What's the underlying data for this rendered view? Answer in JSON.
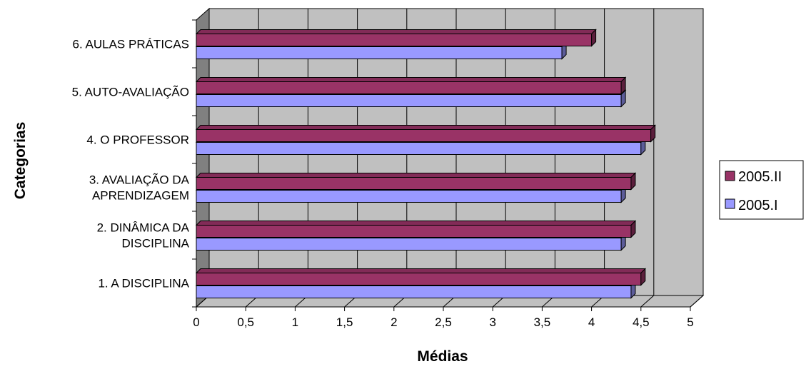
{
  "chart_data": {
    "type": "bar",
    "orientation": "horizontal",
    "style": "3d",
    "xlabel": "Médias",
    "ylabel": "Categorias",
    "xlim": [
      0,
      5
    ],
    "x_ticks": [
      "0",
      "0,5",
      "1",
      "1,5",
      "2",
      "2,5",
      "3",
      "3,5",
      "4",
      "4,5",
      "5"
    ],
    "grid": true,
    "legend_position": "right",
    "categories": [
      [
        "1. A DISCIPLINA"
      ],
      [
        "2. DINÂMICA DA",
        "DISCIPLINA"
      ],
      [
        "3. AVALIAÇÃO DA",
        "APRENDIZAGEM"
      ],
      [
        "4. O PROFESSOR"
      ],
      [
        "5. AUTO-AVALIAÇÃO"
      ],
      [
        "6. AULAS PRÁTICAS"
      ]
    ],
    "series": [
      {
        "name": "2005.II",
        "color": "#993366",
        "values": [
          4.5,
          4.4,
          4.4,
          4.6,
          4.3,
          4.0
        ]
      },
      {
        "name": "2005.I",
        "color": "#9999FF",
        "values": [
          4.4,
          4.3,
          4.3,
          4.5,
          4.3,
          3.7
        ]
      }
    ],
    "legend_order": [
      "2005.II",
      "2005.I"
    ],
    "colors": {
      "wall": "#C0C0C0",
      "side_wall": "#808080",
      "floor": "#C0C0C0",
      "grid": "#000000"
    }
  }
}
